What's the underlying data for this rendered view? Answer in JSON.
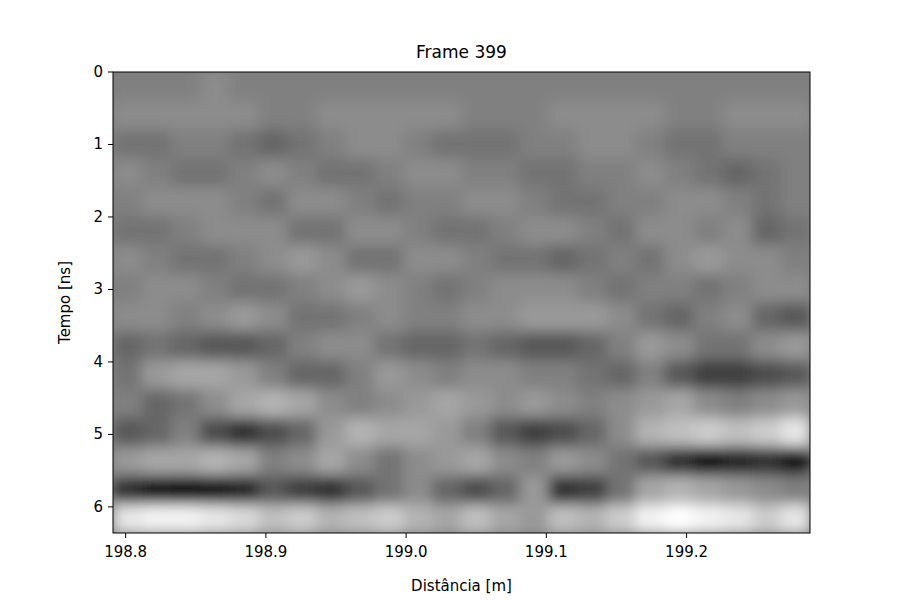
{
  "chart_data": {
    "type": "heatmap",
    "title": "Frame 399",
    "x_label": "Distância [m]",
    "y_label": "Tempo [ns]",
    "xlim": [
      198.791,
      199.288
    ],
    "ylim": [
      6.36,
      0
    ],
    "xticks": [
      198.8,
      198.9,
      {
        "value": 199,
        "label": "199.0"
      },
      199.1,
      199.2
    ],
    "yticks": [
      0,
      1,
      2,
      3,
      4,
      5,
      6
    ],
    "color_range": [
      -1,
      1
    ],
    "cells": [
      [
        0,
        0,
        0,
        0.1,
        0,
        0,
        0,
        0,
        0,
        0,
        0,
        0,
        0,
        0,
        0,
        0,
        0,
        0,
        0,
        0,
        0,
        0,
        0,
        0
      ],
      [
        0.1,
        0.1,
        0.1,
        0.1,
        0.1,
        0,
        0,
        0.1,
        0.1,
        0.1,
        0.1,
        0.1,
        0,
        0,
        0,
        0.1,
        0.1,
        0.1,
        0.1,
        0,
        0,
        0.1,
        0.1,
        0.1
      ],
      [
        -0.1,
        -0.1,
        0,
        0,
        -0.1,
        -0.2,
        -0.1,
        0,
        0.1,
        0.1,
        0,
        -0.1,
        -0.1,
        -0.1,
        0,
        0,
        0.1,
        0.1,
        0,
        -0.1,
        -0.1,
        0,
        0,
        0
      ],
      [
        0.1,
        0,
        -0.1,
        -0.1,
        0,
        0.1,
        0,
        -0.1,
        -0.1,
        0,
        0.1,
        0.1,
        0,
        0,
        -0.1,
        -0.1,
        0,
        0,
        0.1,
        0,
        -0.1,
        -0.2,
        -0.1,
        0
      ],
      [
        0,
        0.1,
        0.1,
        0.1,
        0,
        -0.1,
        0.1,
        0.1,
        0,
        -0.1,
        0,
        0,
        0.1,
        0.1,
        0,
        -0.1,
        -0.1,
        0,
        0,
        0.1,
        0.1,
        0,
        -0.1,
        0
      ],
      [
        -0.1,
        -0.1,
        0,
        0.1,
        0.1,
        0.1,
        -0.1,
        -0.1,
        0.1,
        0.1,
        0,
        -0.1,
        -0.1,
        0,
        0.1,
        0.1,
        0,
        -0.1,
        0.1,
        0.1,
        0,
        0.1,
        -0.2,
        -0.1
      ],
      [
        0.1,
        0,
        -0.1,
        -0.1,
        0,
        0.1,
        0.2,
        0.1,
        -0.1,
        -0.1,
        0.1,
        0.1,
        0,
        -0.1,
        -0.1,
        -0.2,
        -0.1,
        0,
        -0.1,
        0.1,
        0.2,
        0.1,
        0.1,
        0
      ],
      [
        0,
        0.1,
        0.1,
        0,
        -0.1,
        -0.1,
        0,
        0.1,
        0.2,
        0.1,
        0,
        -0.1,
        0,
        0.1,
        0.1,
        0.1,
        0,
        -0.1,
        0,
        0,
        -0.1,
        0,
        0.1,
        0.1
      ],
      [
        0.1,
        0.1,
        0,
        0.1,
        0.2,
        0.1,
        -0.1,
        -0.1,
        0,
        0.1,
        0,
        0,
        0.1,
        0.1,
        0.2,
        0.2,
        0.2,
        0.1,
        -0.1,
        -0.2,
        0,
        0.1,
        -0.2,
        -0.3
      ],
      [
        -0.2,
        -0.1,
        -0.2,
        -0.3,
        -0.3,
        -0.2,
        0,
        0.1,
        0.1,
        -0.1,
        -0.2,
        -0.2,
        -0.1,
        -0.2,
        -0.3,
        -0.3,
        -0.2,
        0,
        0.2,
        0.1,
        -0.1,
        -0.1,
        0.1,
        0.2
      ],
      [
        -0.1,
        0.2,
        0.3,
        0.3,
        0.2,
        0,
        -0.2,
        -0.2,
        0,
        0.2,
        0.1,
        0,
        0.1,
        0.1,
        0,
        0,
        -0.1,
        -0.2,
        0,
        -0.3,
        -0.5,
        -0.5,
        -0.4,
        -0.3
      ],
      [
        0,
        -0.2,
        -0.1,
        0.1,
        0.3,
        0.4,
        0.3,
        0.1,
        0,
        0.1,
        0.2,
        0.3,
        0.2,
        0.1,
        0.2,
        0.1,
        0,
        0.1,
        0.2,
        0.3,
        0.1,
        0,
        0.1,
        0.2
      ],
      [
        -0.3,
        -0.2,
        0,
        -0.4,
        -0.6,
        -0.4,
        -0.2,
        0.2,
        0.4,
        0.3,
        0.3,
        0.2,
        0,
        -0.3,
        -0.5,
        -0.4,
        -0.2,
        0.1,
        0.4,
        0.5,
        0.6,
        0.5,
        0.6,
        0.8
      ],
      [
        0.2,
        0.3,
        0.3,
        0.4,
        0.3,
        0,
        0.1,
        0.3,
        0.1,
        -0.1,
        0.1,
        0.2,
        0.3,
        0.1,
        0,
        0.2,
        0.1,
        -0.1,
        -0.3,
        -0.6,
        -0.8,
        -0.7,
        -0.6,
        -0.8
      ],
      [
        -0.6,
        -0.8,
        -0.9,
        -0.8,
        -0.7,
        -0.3,
        -0.5,
        -0.6,
        -0.3,
        -0.1,
        0.1,
        -0.2,
        -0.4,
        -0.2,
        0.2,
        -0.6,
        -0.5,
        -0.1,
        0.3,
        0.4,
        0.3,
        0.2,
        0.1,
        0
      ],
      [
        0.8,
        0.9,
        0.9,
        0.8,
        0.7,
        0.5,
        0.6,
        0.4,
        0.5,
        0.6,
        0.4,
        0.3,
        0.5,
        0.3,
        0.2,
        0.5,
        0.4,
        0.6,
        0.9,
        1.0,
        0.9,
        0.8,
        0.6,
        0.8
      ]
    ]
  }
}
